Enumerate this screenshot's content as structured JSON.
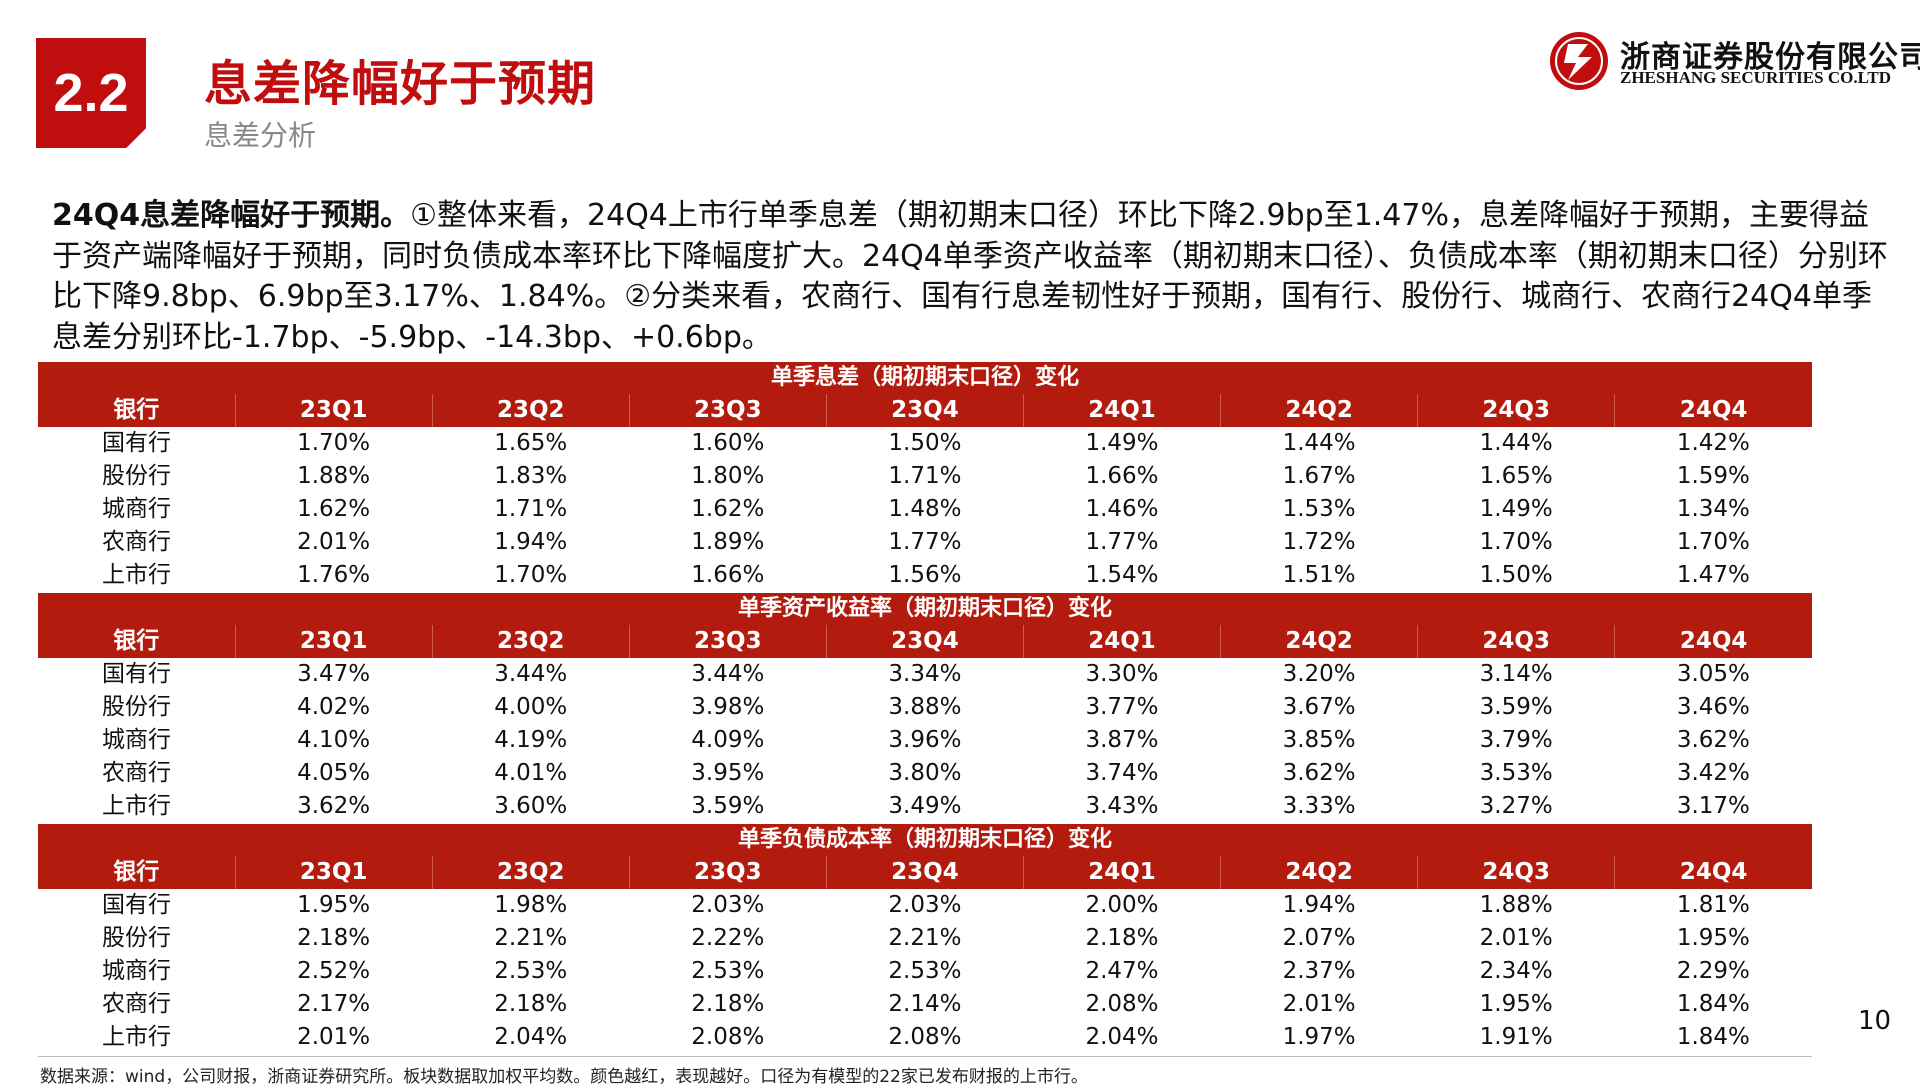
{
  "header": {
    "section_number": "2.2",
    "title": "息差降幅好于预期",
    "subtitle": "息差分析"
  },
  "logo": {
    "name_cn": "浙商证券股份有限公司",
    "name_en": "ZHESHANG SECURITIES CO.LTD"
  },
  "intro": {
    "lead": "24Q4息差降幅好于预期。",
    "body": "①整体来看，24Q4上市行单季息差（期初期末口径）环比下降2.9bp至1.47%，息差降幅好于预期，主要得益于资产端降幅好于预期，同时负债成本率环比下降幅度扩大。24Q4单季资产收益率（期初期末口径）、负债成本率（期初期末口径）分别环比下降9.8bp、6.9bp至3.17%、1.84%。②分类来看，农商行、国有行息差韧性好于预期，国有行、股份行、城商行、农商行24Q4单季息差分别环比-1.7bp、-5.9bp、-14.3bp、+0.6bp。"
  },
  "tables": [
    {
      "title": "单季息差（期初期末口径）变化",
      "headers": [
        "银行",
        "23Q1",
        "23Q2",
        "23Q3",
        "23Q4",
        "24Q1",
        "24Q2",
        "24Q3",
        "24Q4"
      ],
      "rows": [
        [
          "国有行",
          "1.70%",
          "1.65%",
          "1.60%",
          "1.50%",
          "1.49%",
          "1.44%",
          "1.44%",
          "1.42%"
        ],
        [
          "股份行",
          "1.88%",
          "1.83%",
          "1.80%",
          "1.71%",
          "1.66%",
          "1.67%",
          "1.65%",
          "1.59%"
        ],
        [
          "城商行",
          "1.62%",
          "1.71%",
          "1.62%",
          "1.48%",
          "1.46%",
          "1.53%",
          "1.49%",
          "1.34%"
        ],
        [
          "农商行",
          "2.01%",
          "1.94%",
          "1.89%",
          "1.77%",
          "1.77%",
          "1.72%",
          "1.70%",
          "1.70%"
        ],
        [
          "上市行",
          "1.76%",
          "1.70%",
          "1.66%",
          "1.56%",
          "1.54%",
          "1.51%",
          "1.50%",
          "1.47%"
        ]
      ]
    },
    {
      "title": "单季资产收益率（期初期末口径）变化",
      "headers": [
        "银行",
        "23Q1",
        "23Q2",
        "23Q3",
        "23Q4",
        "24Q1",
        "24Q2",
        "24Q3",
        "24Q4"
      ],
      "rows": [
        [
          "国有行",
          "3.47%",
          "3.44%",
          "3.44%",
          "3.34%",
          "3.30%",
          "3.20%",
          "3.14%",
          "3.05%"
        ],
        [
          "股份行",
          "4.02%",
          "4.00%",
          "3.98%",
          "3.88%",
          "3.77%",
          "3.67%",
          "3.59%",
          "3.46%"
        ],
        [
          "城商行",
          "4.10%",
          "4.19%",
          "4.09%",
          "3.96%",
          "3.87%",
          "3.85%",
          "3.79%",
          "3.62%"
        ],
        [
          "农商行",
          "4.05%",
          "4.01%",
          "3.95%",
          "3.80%",
          "3.74%",
          "3.62%",
          "3.53%",
          "3.42%"
        ],
        [
          "上市行",
          "3.62%",
          "3.60%",
          "3.59%",
          "3.49%",
          "3.43%",
          "3.33%",
          "3.27%",
          "3.17%"
        ]
      ]
    },
    {
      "title": "单季负债成本率（期初期末口径）变化",
      "headers": [
        "银行",
        "23Q1",
        "23Q2",
        "23Q3",
        "23Q4",
        "24Q1",
        "24Q2",
        "24Q3",
        "24Q4"
      ],
      "rows": [
        [
          "国有行",
          "1.95%",
          "1.98%",
          "2.03%",
          "2.03%",
          "2.00%",
          "1.94%",
          "1.88%",
          "1.81%"
        ],
        [
          "股份行",
          "2.18%",
          "2.21%",
          "2.22%",
          "2.21%",
          "2.18%",
          "2.07%",
          "2.01%",
          "1.95%"
        ],
        [
          "城商行",
          "2.52%",
          "2.53%",
          "2.53%",
          "2.53%",
          "2.47%",
          "2.37%",
          "2.34%",
          "2.29%"
        ],
        [
          "农商行",
          "2.17%",
          "2.18%",
          "2.18%",
          "2.14%",
          "2.08%",
          "2.01%",
          "1.95%",
          "1.84%"
        ],
        [
          "上市行",
          "2.01%",
          "2.04%",
          "2.08%",
          "2.08%",
          "2.04%",
          "1.97%",
          "1.91%",
          "1.84%"
        ]
      ]
    }
  ],
  "footer": {
    "source_note": "数据来源：wind，公司财报，浙商证券研究所。板块数据取加权平均数。颜色越红，表现越好。口径为有模型的22家已发布财报的上市行。",
    "page_number": "10"
  },
  "colors": {
    "brand_red": "#c00d0d",
    "table_header_red": "#b31b0e",
    "subtitle_gray": "#888888"
  }
}
